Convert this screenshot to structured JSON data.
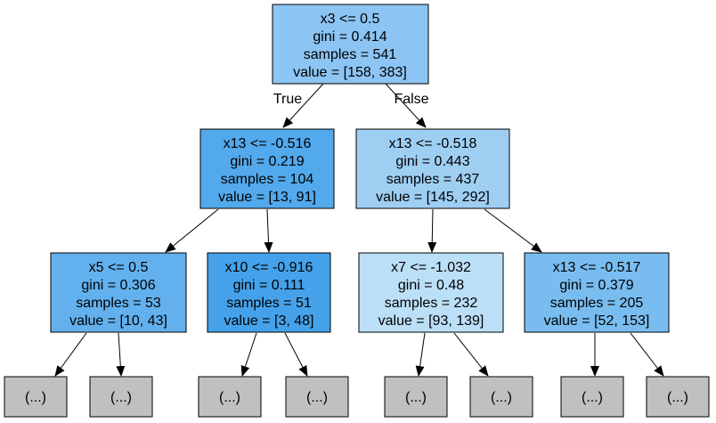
{
  "colors": {
    "depth0": "#8cc4f3",
    "depth1_left": "#52a9ec",
    "depth1_right": "#9fcef3",
    "x5_node": "#62b1ee",
    "x10_node": "#45a2ea",
    "x7_node": "#bcdff8",
    "x13_right_node": "#79bdf0",
    "leaf": "#c0c0c0",
    "stroke": "#000000"
  },
  "tree": {
    "root": {
      "lines": [
        "x3 <= 0.5",
        "gini = 0.414",
        "samples = 541",
        "value = [158, 383]"
      ],
      "gini": 0.414,
      "samples": 541,
      "value": [
        158,
        383
      ]
    },
    "left": {
      "lines": [
        "x13 <= -0.516",
        "gini = 0.219",
        "samples = 104",
        "value = [13, 91]"
      ],
      "gini": 0.219,
      "samples": 104,
      "value": [
        13,
        91
      ]
    },
    "right": {
      "lines": [
        "x13 <= -0.518",
        "gini = 0.443",
        "samples = 437",
        "value = [145, 292]"
      ],
      "gini": 0.443,
      "samples": 437,
      "value": [
        145,
        292
      ]
    },
    "ll": {
      "lines": [
        "x5 <= 0.5",
        "gini = 0.306",
        "samples = 53",
        "value = [10, 43]"
      ],
      "gini": 0.306,
      "samples": 53,
      "value": [
        10,
        43
      ]
    },
    "lr": {
      "lines": [
        "x10 <= -0.916",
        "gini = 0.111",
        "samples = 51",
        "value = [3, 48]"
      ],
      "gini": 0.111,
      "samples": 51,
      "value": [
        3,
        48
      ]
    },
    "rl": {
      "lines": [
        "x7 <= -1.032",
        "gini = 0.48",
        "samples = 232",
        "value = [93, 139]"
      ],
      "gini": 0.48,
      "samples": 232,
      "value": [
        93,
        139
      ]
    },
    "rr": {
      "lines": [
        "x13 <= -0.517",
        "gini = 0.379",
        "samples = 205",
        "value = [52, 153]"
      ],
      "gini": 0.379,
      "samples": 205,
      "value": [
        52,
        153
      ]
    },
    "leaf_label": "(...)"
  },
  "edge_labels": {
    "true_label": "True",
    "false_label": "False"
  }
}
